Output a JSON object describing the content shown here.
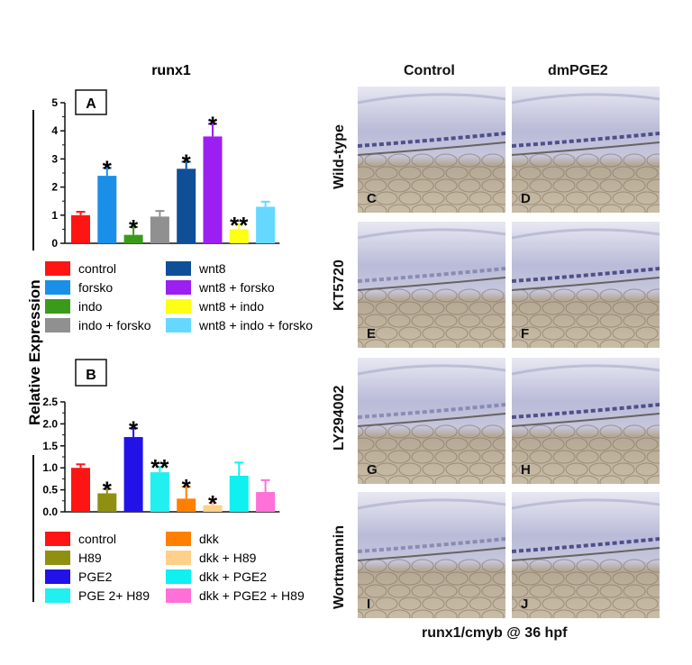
{
  "title_left": "runx1",
  "col_headers": [
    "Control",
    "dmPGE2"
  ],
  "row_headers": [
    "Wild-type",
    "KT5720",
    "LY294002",
    "Wortmannin"
  ],
  "image_panel_letters": [
    "C",
    "D",
    "E",
    "F",
    "G",
    "H",
    "I",
    "J"
  ],
  "bottom_caption": "runx1/cmyb @ 36 hpf",
  "y_axis_label": "Relative Expression",
  "chart_data": [
    {
      "type": "bar",
      "panel_label": "A",
      "categories": [
        "control",
        "forsko",
        "indo",
        "indo + forsko",
        "wnt8",
        "wnt8 + forsko",
        "wnt8 + indo",
        "wnt8 + indo + forsko"
      ],
      "values": [
        1.0,
        2.4,
        0.3,
        0.95,
        2.65,
        3.8,
        0.5,
        1.3
      ],
      "errors": [
        0.12,
        0.28,
        0.28,
        0.2,
        0.25,
        0.45,
        0.18,
        0.18
      ],
      "significance": [
        "",
        "*",
        "*",
        "",
        "*",
        "*",
        "**",
        ""
      ],
      "colors": [
        "#ff1414",
        "#1a8fe8",
        "#3a9b1a",
        "#909090",
        "#0f4f98",
        "#9b1ff0",
        "#ffff14",
        "#66d8ff"
      ],
      "ylim": [
        0,
        5
      ],
      "yticks": [
        "0",
        "1",
        "2",
        "3",
        "4",
        "5"
      ],
      "legend": [
        "control",
        "forsko",
        "indo",
        "indo + forsko",
        "wnt8",
        "wnt8 + forsko",
        "wnt8 + indo",
        "wnt8 + indo + forsko"
      ]
    },
    {
      "type": "bar",
      "panel_label": "B",
      "categories": [
        "control",
        "H89",
        "PGE2",
        "PGE 2+ H89",
        "dkk",
        "dkk + H89",
        "dkk + PGE2",
        "dkk + PGE2 + H89"
      ],
      "values": [
        1.0,
        0.42,
        1.7,
        0.9,
        0.3,
        0.15,
        0.82,
        0.45
      ],
      "errors": [
        0.08,
        0.1,
        0.2,
        0.12,
        0.27,
        0.05,
        0.3,
        0.27
      ],
      "significance": [
        "",
        "*",
        "*",
        "**",
        "*",
        "*",
        "",
        ""
      ],
      "colors": [
        "#ff1414",
        "#8f8f12",
        "#2212e8",
        "#22f0f0",
        "#ff8000",
        "#ffd08a",
        "#10f0f0",
        "#ff70d8"
      ],
      "ylim": [
        0,
        2.5
      ],
      "yticks": [
        "0.0",
        "0.5",
        "1.0",
        "1.5",
        "2.0",
        "2.5"
      ],
      "legend": [
        "control",
        "H89",
        "PGE2",
        "PGE 2+ H89",
        "dkk",
        "dkk + H89",
        "dkk + PGE2",
        "dkk + PGE2 + H89"
      ]
    }
  ]
}
